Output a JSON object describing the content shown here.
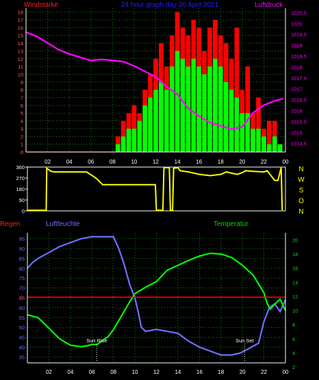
{
  "header": {
    "left": "Windstärke",
    "center": "24 hour graph day  20 April 2021",
    "right": "Luftdruck"
  },
  "colors": {
    "wind_label": "#ff2020",
    "title": "#2020ff",
    "pressure": "#ff00ff",
    "gust": "#ff0000",
    "wind_avg": "#00ff00",
    "direction": "#ffff00",
    "humidity": "#7070ff",
    "temperature": "#00ff00",
    "rain": "#ff0000",
    "axis": "#ffffff",
    "grid": "#1fd81f",
    "sun": "#ffffff"
  },
  "chart_data": [
    {
      "id": "wind_pressure",
      "type": "bar",
      "title": "24 hour graph day  20 April 2021",
      "ylabel_left": "Windstärke",
      "ylabel_right": "Luftdruck",
      "x_ticks": [
        "02",
        "04",
        "06",
        "08",
        "10",
        "12",
        "14",
        "16",
        "18",
        "20",
        "22",
        "00"
      ],
      "x_range": [
        0,
        24
      ],
      "y_left_ticks": [
        0,
        1,
        2,
        3,
        4,
        5,
        6,
        7,
        8,
        9,
        10,
        11,
        12,
        13,
        14,
        15,
        16,
        17,
        18
      ],
      "y_left_range": [
        0,
        18.5
      ],
      "y_right_ticks": [
        "1014.5",
        "1015",
        "1015.5",
        "1016",
        "1016.5",
        "1017",
        "1017.5",
        "1018",
        "1018.5",
        "1019",
        "1019.5",
        "1020",
        "1020.5"
      ],
      "y_right_range": [
        1014.1,
        1020.7
      ],
      "grid": true,
      "series": [
        {
          "name": "Böen",
          "kind": "gust",
          "x": [
            8.5,
            9.0,
            9.5,
            10.0,
            10.5,
            11.0,
            11.5,
            12.0,
            12.5,
            13.0,
            13.5,
            14.0,
            14.5,
            15.0,
            15.5,
            16.0,
            16.5,
            17.0,
            17.5,
            18.0,
            18.5,
            19.0,
            19.5,
            20.0,
            20.5,
            21.0,
            21.5,
            22.0,
            22.5,
            23.0,
            23.5
          ],
          "values": [
            2,
            4,
            5,
            6,
            5,
            8,
            10,
            12,
            14,
            11,
            15,
            18,
            16,
            15,
            17,
            16,
            13,
            16,
            17,
            15,
            14,
            12,
            16,
            8,
            11,
            5,
            7,
            3,
            4,
            4,
            1
          ]
        },
        {
          "name": "Mittelwind",
          "kind": "average",
          "x": [
            8.5,
            9.0,
            9.5,
            10.0,
            10.5,
            11.0,
            11.5,
            12.0,
            12.5,
            13.0,
            13.5,
            14.0,
            14.5,
            15.0,
            15.5,
            16.0,
            16.5,
            17.0,
            17.5,
            18.0,
            18.5,
            19.0,
            19.5,
            20.0,
            20.5,
            21.0,
            21.5,
            22.0,
            22.5,
            23.0,
            23.5
          ],
          "values": [
            1,
            2,
            3,
            3,
            4,
            6,
            7,
            8,
            9,
            8,
            11,
            13,
            12,
            11,
            12,
            11,
            10,
            11,
            12,
            11,
            9,
            8,
            7,
            5,
            5,
            3,
            3,
            2,
            1,
            2,
            1
          ]
        },
        {
          "name": "Luftdruck",
          "kind": "pressure",
          "x": [
            0,
            1,
            2,
            3,
            4,
            5,
            6,
            7,
            8,
            9,
            10,
            11,
            12,
            13,
            14,
            15,
            16,
            17,
            18,
            19,
            20,
            21,
            22,
            23,
            23.8
          ],
          "values": [
            1019.6,
            1019.4,
            1019.1,
            1018.8,
            1018.6,
            1018.45,
            1018.3,
            1018.35,
            1018.3,
            1018.25,
            1018.05,
            1017.8,
            1017.55,
            1017.1,
            1016.75,
            1016.1,
            1015.75,
            1015.45,
            1015.3,
            1015.15,
            1015.25,
            1015.9,
            1016.25,
            1016.45,
            1016.55
          ]
        }
      ]
    },
    {
      "id": "direction",
      "type": "line",
      "y_ticks": [
        "0",
        "90",
        "180",
        "270",
        "360"
      ],
      "y_range": [
        0,
        360
      ],
      "direction_labels": [
        "N",
        "W",
        "S",
        "O",
        "N"
      ],
      "series": [
        {
          "name": "Windrichtung",
          "x": [
            0,
            1.75,
            1.8,
            2.2,
            2.5,
            5.5,
            6.2,
            6.5,
            7.0,
            10.0,
            11.9,
            12.0,
            12.6,
            12.7,
            13.2,
            13.3,
            13.5,
            13.6,
            14.0,
            14.2,
            15,
            16,
            17,
            18,
            18.5,
            19.5,
            20.0,
            20.3,
            21,
            22,
            22.3,
            23.0,
            23.3,
            23.6,
            23.7
          ],
          "values": [
            5,
            5,
            350,
            325,
            320,
            320,
            280,
            260,
            215,
            215,
            215,
            5,
            5,
            355,
            355,
            5,
            5,
            350,
            355,
            330,
            320,
            300,
            290,
            300,
            320,
            300,
            315,
            330,
            325,
            320,
            330,
            250,
            250,
            355,
            5
          ]
        }
      ]
    },
    {
      "id": "humidity_temperature",
      "type": "line",
      "ylabel_left": "Luftfeuchte",
      "ylabel_right": "Temperatur",
      "rain_label": "Regen",
      "rain_value": 0,
      "x_ticks": [
        "02",
        "04",
        "06",
        "08",
        "10",
        "12",
        "14",
        "16",
        "18",
        "20",
        "22",
        "00"
      ],
      "x_range": [
        0,
        24
      ],
      "y_left_ticks": [
        35,
        40,
        45,
        50,
        55,
        60,
        65,
        70,
        75,
        80,
        85,
        90,
        95
      ],
      "y_left_range": [
        32,
        98
      ],
      "y_right_ticks": [
        2,
        4,
        6,
        8,
        10,
        12,
        14,
        16,
        18,
        20
      ],
      "y_right_range": [
        2.6,
        21
      ],
      "grid": true,
      "annotations": [
        {
          "label": "Sun Rise",
          "x": 6.45
        },
        {
          "label": "Sun Set",
          "x": 20.2
        }
      ],
      "series": [
        {
          "name": "Luftfeuchte",
          "x": [
            0,
            0.5,
            1,
            2,
            3,
            4,
            5,
            6,
            7,
            7.5,
            8,
            8.5,
            9,
            9.5,
            10,
            10.3,
            10.6,
            11,
            12,
            13,
            14,
            15,
            16,
            17,
            18,
            19,
            19.8,
            20.5,
            21.5,
            22,
            22.5,
            23,
            23.5,
            24
          ],
          "values": [
            80,
            83,
            85,
            88,
            91,
            93,
            95,
            96,
            96,
            96,
            96,
            90,
            82,
            72,
            65,
            58,
            50,
            48,
            49,
            48,
            47,
            43,
            40,
            38,
            36,
            36,
            37,
            39,
            42,
            53,
            60,
            62,
            58,
            64
          ]
        },
        {
          "name": "Temperatur",
          "x": [
            0,
            1,
            2,
            3,
            4,
            5,
            5.5,
            6,
            6.5,
            7,
            7.5,
            8,
            8.5,
            9,
            9.5,
            10,
            11,
            12,
            13,
            14,
            15,
            16,
            17,
            18,
            19,
            20,
            21,
            22,
            22.3,
            22.6,
            23,
            23.5,
            24
          ],
          "values": [
            9.4,
            9.0,
            7.5,
            6.0,
            5.1,
            4.9,
            5.0,
            5.2,
            5.2,
            5.8,
            6.3,
            7.3,
            8.6,
            9.9,
            11.2,
            12.4,
            13.3,
            14.1,
            15.7,
            16.4,
            17.1,
            17.7,
            18.1,
            18.0,
            17.5,
            16.4,
            15.0,
            12.5,
            11.0,
            10.2,
            10.9,
            11.6,
            10.0
          ]
        }
      ]
    }
  ]
}
